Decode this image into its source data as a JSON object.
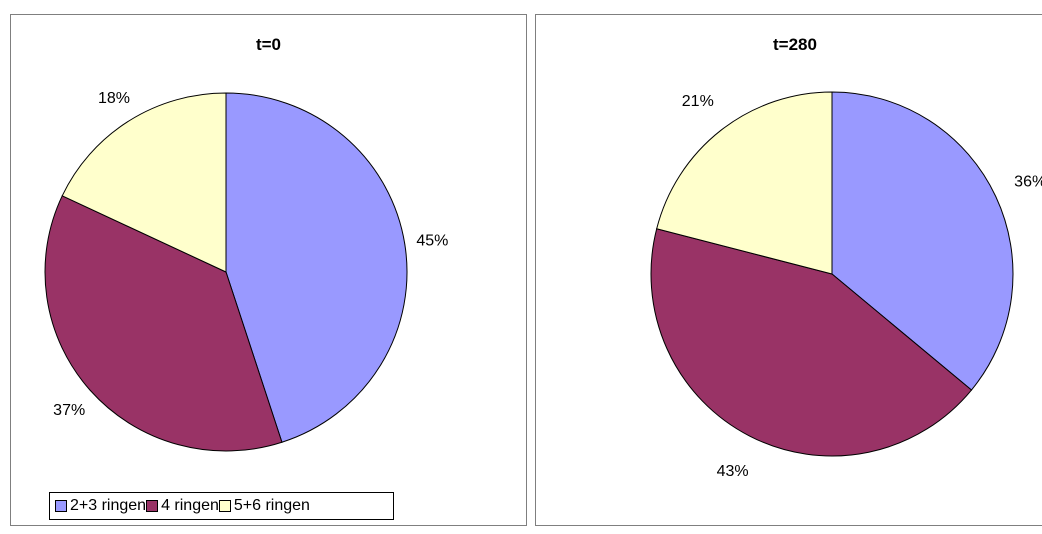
{
  "chart_data": [
    {
      "type": "pie",
      "title": "t=0",
      "categories": [
        "2+3 ringen",
        "4 ringen",
        "5+6 ringen"
      ],
      "values": [
        45,
        37,
        18
      ],
      "labels": [
        "45%",
        "37%",
        "18%"
      ]
    },
    {
      "type": "pie",
      "title": "t=280",
      "categories": [
        "2+3 ringen",
        "4 ringen",
        "5+6 ringen"
      ],
      "values": [
        36,
        43,
        21
      ],
      "labels": [
        "36%",
        "43%",
        "21%"
      ]
    }
  ],
  "legend": {
    "items": [
      "2+3 ringen",
      "4 ringen",
      "5+6 ringen"
    ],
    "placement": "bottom-left"
  },
  "colors": {
    "2+3 ringen": "#9999ff",
    "4 ringen": "#993366",
    "5+6 ringen": "#ffffcc"
  }
}
